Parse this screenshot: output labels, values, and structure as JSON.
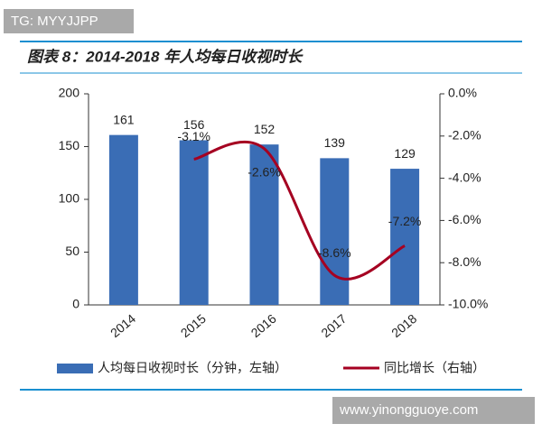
{
  "watermark_top": "TG: MYYJJPP",
  "watermark_bottom": "www.yinongguoye.com",
  "chart_data": {
    "type": "combo",
    "title": "图表 8：2014-2018 年人均每日收视时长",
    "categories": [
      "2014",
      "2015",
      "2016",
      "2017",
      "2018"
    ],
    "series": [
      {
        "name": "人均每日收视时长（分钟，左轴）",
        "type": "bar",
        "color": "#3a6db5",
        "values": [
          161,
          156,
          152,
          139,
          129
        ]
      },
      {
        "name": "同比增长（右轴）",
        "type": "line",
        "axis": "y2",
        "color": "#a50021",
        "values": [
          null,
          -3.1,
          -2.6,
          -8.6,
          -7.2
        ],
        "value_labels": [
          null,
          "-3.1%",
          "-2.6%",
          "-8.6%",
          "-7.2%"
        ]
      }
    ],
    "ylim": [
      0,
      200
    ],
    "yticks": [
      0,
      50,
      100,
      150,
      200
    ],
    "y2lim": [
      -10,
      0
    ],
    "y2ticks": [
      {
        "value": 0,
        "label": "0.0%"
      },
      {
        "value": -2,
        "label": "-2.0%"
      },
      {
        "value": -4,
        "label": "-4.0%"
      },
      {
        "value": -6,
        "label": "-6.0%"
      },
      {
        "value": -8,
        "label": "-8.0%"
      },
      {
        "value": -10,
        "label": "-10.0%"
      }
    ],
    "legend": "bottom"
  }
}
